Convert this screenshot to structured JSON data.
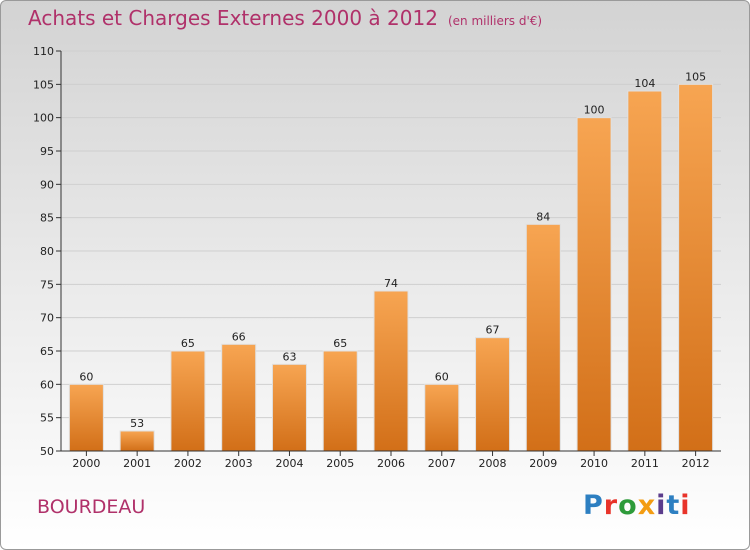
{
  "header": {
    "title": "Achats et Charges Externes 2000 à 2012",
    "unit": "(en milliers d'€)"
  },
  "commune": "BOURDEAU",
  "logo": {
    "text": "Proxiti",
    "letters": [
      "P",
      "r",
      "o",
      "x",
      "i",
      "t",
      "i"
    ]
  },
  "colors": {
    "bar_light": "#f7a552",
    "bar_dark": "#d26f18",
    "title": "#b0316a"
  },
  "chart_data": {
    "type": "bar",
    "categories": [
      "2000",
      "2001",
      "2002",
      "2003",
      "2004",
      "2005",
      "2006",
      "2007",
      "2008",
      "2009",
      "2010",
      "2011",
      "2012"
    ],
    "values": [
      60,
      53,
      65,
      66,
      63,
      65,
      74,
      60,
      67,
      84,
      100,
      104,
      105
    ],
    "ylim": [
      50,
      110
    ],
    "yticks": [
      50,
      55,
      60,
      65,
      70,
      75,
      80,
      85,
      90,
      95,
      100,
      105,
      110
    ],
    "grid": true,
    "legend": "none"
  }
}
